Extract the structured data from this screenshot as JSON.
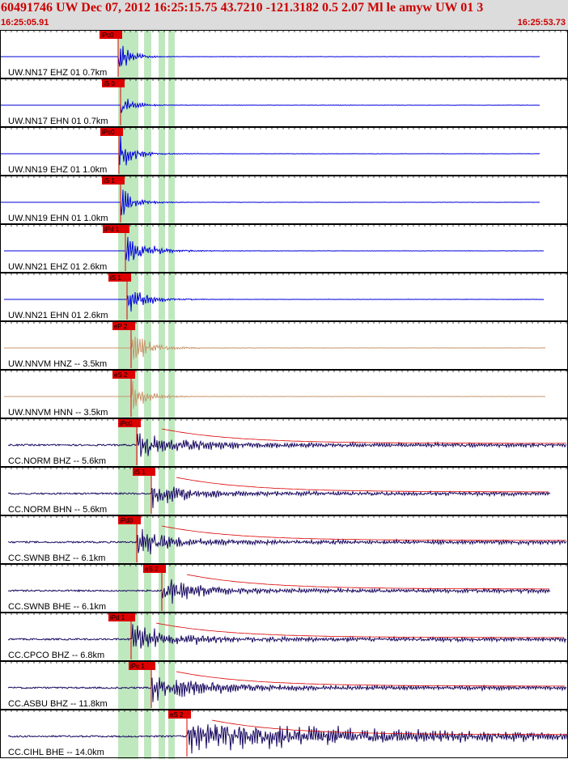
{
  "header": {
    "title": "60491746 UW Dec 07, 2012 16:25:15.75   43.7210 -121.3182  0.5 2.07 Ml le amyw UW 01   3",
    "start_time": "16:25:05.91",
    "end_time": "16:25:53.73"
  },
  "colors": {
    "short_period": "#0000dd",
    "strong_motion": "#c8946a",
    "broadband": "#1a0a60",
    "pick": "#dd0000",
    "pick_window": "#bfe8bf"
  },
  "traces": [
    {
      "label": "UW.NN17 EHZ 01 0.7km",
      "pick": "iPc0",
      "type": "short_period"
    },
    {
      "label": "UW.NN17 EHN 01 0.7km",
      "pick": "iS 0",
      "type": "short_period"
    },
    {
      "label": "UW.NN19 EHZ 01 1.0km",
      "pick": "iPc0",
      "type": "short_period"
    },
    {
      "label": "UW.NN19 EHN 01 1.0km",
      "pick": "iS 1",
      "type": "short_period"
    },
    {
      "label": "UW.NN21 EHZ 01 2.6km",
      "pick": "iPd 1",
      "type": "short_period"
    },
    {
      "label": "UW.NN21 EHN 01 2.6km",
      "pick": "iS 1",
      "type": "short_period"
    },
    {
      "label": "UW.NNVM HNZ -- 3.5km",
      "pick": "eP 2",
      "type": "strong_motion"
    },
    {
      "label": "UW.NNVM HNN -- 3.5km",
      "pick": "eS 2",
      "type": "strong_motion"
    },
    {
      "label": "CC.NORM BHZ -- 5.6km",
      "pick": "iPc0",
      "type": "broadband"
    },
    {
      "label": "CC.NORM BHN -- 5.6km",
      "pick": "iS 1",
      "type": "broadband"
    },
    {
      "label": "CC.SWNB BHZ -- 6.1km",
      "pick": "iPd0",
      "type": "broadband"
    },
    {
      "label": "CC.SWNB BHE -- 6.1km",
      "pick": "eS 2",
      "type": "broadband"
    },
    {
      "label": "CC.CPCO BHZ -- 6.8km",
      "pick": "iPd 1",
      "type": "broadband"
    },
    {
      "label": "CC.ASBU BHZ -- 11.8km",
      "pick": "iPc 1",
      "type": "broadband"
    },
    {
      "label": "CC.CIHL BHE -- 14.0km",
      "pick": "eS 2",
      "type": "broadband"
    }
  ]
}
